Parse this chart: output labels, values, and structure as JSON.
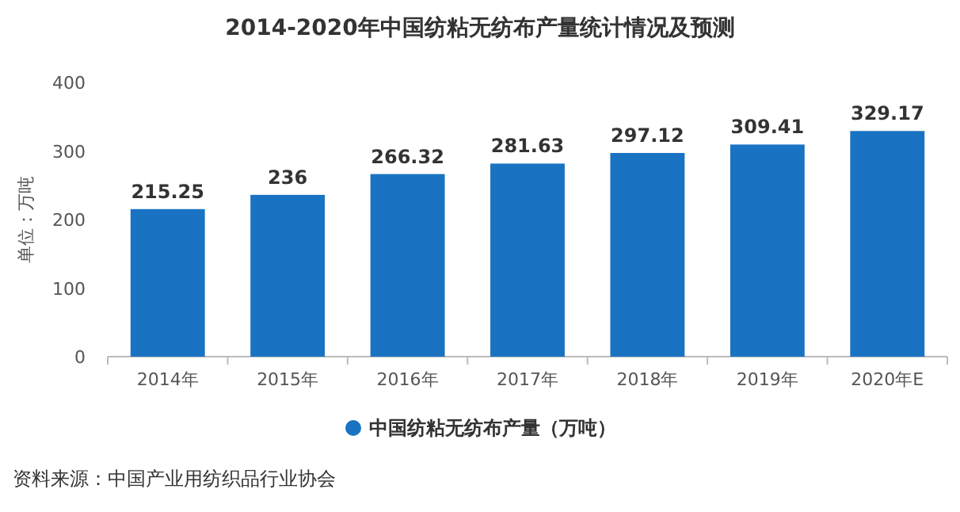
{
  "chart_data": {
    "type": "bar",
    "title": "2014-2020年中国纺粘无纺布产量统计情况及预测",
    "ylabel": "单位：万吨",
    "categories": [
      "2014年",
      "2015年",
      "2016年",
      "2017年",
      "2018年",
      "2019年",
      "2020年E"
    ],
    "series": [
      {
        "name": "中国纺粘无纺布产量（万吨）",
        "color": "#1a73c2",
        "values": [
          215.25,
          236,
          266.32,
          281.63,
          297.12,
          309.41,
          329.17
        ]
      }
    ],
    "ylim": [
      0,
      400
    ],
    "yticks": [
      0,
      100,
      200,
      300,
      400
    ],
    "data_labels": true,
    "legend": "bottom",
    "annotations": [
      "资料来源：中国产业用纺织品行业协会"
    ]
  }
}
